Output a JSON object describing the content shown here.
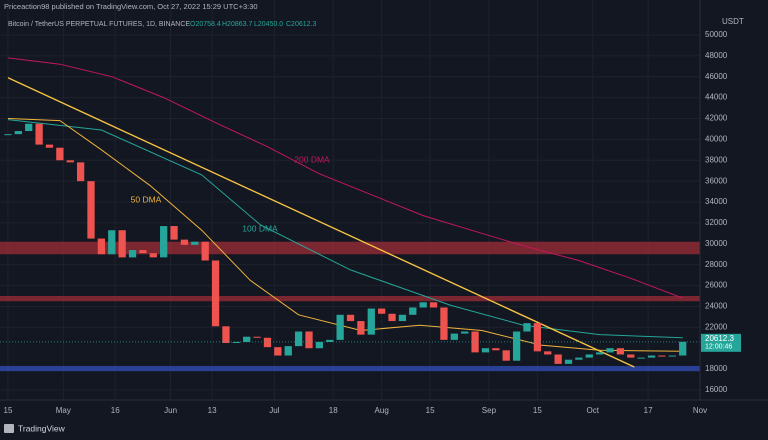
{
  "header": {
    "publisher": "Priceaction98 published on TradingView.com, Oct 27, 2022 15:29 UTC+3:30",
    "symbol": "Bitcoin / TetherUS PERPETUAL FUTURES, 1D, BINANCE",
    "ohlc_labels": [
      "O20758.4",
      "H20863.7",
      "L20450.0",
      "C20612.3"
    ],
    "currency": "USDT",
    "countdown": "12:00:46",
    "brand": "TradingView"
  },
  "chart_data": {
    "type": "candlestick",
    "x": [
      0,
      3,
      6,
      9,
      12,
      15,
      18,
      21,
      24,
      27,
      30,
      33,
      36,
      39,
      42,
      45,
      48,
      51,
      54,
      57,
      60,
      63,
      66,
      69,
      72,
      75,
      78,
      81,
      84,
      87,
      90,
      93,
      96,
      99,
      102,
      105,
      108,
      111,
      114,
      117,
      120,
      123,
      126,
      129,
      132,
      135,
      138,
      141,
      144,
      147,
      150,
      153,
      156,
      159,
      162,
      165,
      168,
      171,
      174,
      177,
      180,
      183,
      186,
      189,
      192,
      195
    ],
    "values": [
      40500,
      40800,
      41500,
      39500,
      39200,
      38000,
      37800,
      36000,
      30500,
      29000,
      31300,
      28700,
      29400,
      29100,
      28700,
      31700,
      30400,
      29900,
      30200,
      28400,
      22100,
      20500,
      20600,
      21100,
      21000,
      20100,
      19300,
      20200,
      21600,
      20000,
      20600,
      20800,
      23200,
      22600,
      21300,
      23800,
      23300,
      22600,
      23200,
      23900,
      24400,
      23900,
      20800,
      21400,
      21600,
      19600,
      20000,
      19800,
      18800,
      21600,
      22400,
      19700,
      19400,
      18500,
      18900,
      19100,
      19400,
      19600,
      20000,
      19400,
      19100,
      19100,
      19300,
      19200,
      19300,
      20612.3
    ],
    "up_color": "#26a69a",
    "down_color": "#ef5350",
    "lines": [
      {
        "name": "200 DMA",
        "color": "#c2185b",
        "x": [
          0,
          15,
          30,
          45,
          60,
          75,
          90,
          105,
          120,
          135,
          150,
          165,
          180,
          195
        ],
        "values": [
          47800,
          47200,
          46000,
          44000,
          41600,
          39300,
          36700,
          34700,
          32700,
          31200,
          29700,
          28400,
          26700,
          24800
        ]
      },
      {
        "name": "100 DMA",
        "color": "#26a69a",
        "x": [
          0,
          27,
          56,
          73,
          99,
          128,
          149,
          171,
          195
        ],
        "values": [
          41900,
          40900,
          36600,
          31800,
          27500,
          24100,
          22200,
          21300,
          21000
        ]
      },
      {
        "name": "50 DMA",
        "color": "#f0b43c",
        "x": [
          0,
          15,
          27,
          41,
          56,
          70,
          84,
          102,
          119,
          137,
          154,
          171,
          195
        ],
        "values": [
          42000,
          41800,
          39000,
          35600,
          31300,
          26500,
          23200,
          21700,
          22200,
          21700,
          20300,
          19800,
          19700
        ]
      }
    ],
    "trendline": {
      "x": [
        0,
        181
      ],
      "values": [
        45900,
        18200
      ],
      "color": "#f5c242"
    },
    "zones": [
      {
        "range": [
          29000,
          30200
        ],
        "color": "#8e2a35"
      },
      {
        "range": [
          24500,
          25000
        ],
        "color": "#8e2a35"
      },
      {
        "range": [
          17800,
          18300
        ],
        "color": "#2f48a8"
      }
    ],
    "xlim": [
      -2.3,
      200
    ],
    "ylim": [
      15040,
      53350
    ],
    "xticks": [
      {
        "value": 0,
        "label": "15"
      },
      {
        "value": 16,
        "label": "May"
      },
      {
        "value": 31,
        "label": "16"
      },
      {
        "value": 47,
        "label": "Jun"
      },
      {
        "value": 59,
        "label": "13"
      },
      {
        "value": 77,
        "label": "Jul"
      },
      {
        "value": 94,
        "label": "18"
      },
      {
        "value": 108,
        "label": "Aug"
      },
      {
        "value": 122,
        "label": "15"
      },
      {
        "value": 139,
        "label": "Sep"
      },
      {
        "value": 153,
        "label": "15"
      },
      {
        "value": 169,
        "label": "Oct"
      },
      {
        "value": 185,
        "label": "17"
      },
      {
        "value": 200,
        "label": "Nov"
      }
    ],
    "yticks": [
      16000,
      18000,
      22000,
      24000,
      26000,
      28000,
      30000,
      32000,
      34000,
      36000,
      38000,
      40000,
      42000,
      44000,
      46000,
      48000,
      50000
    ],
    "grid": true
  }
}
